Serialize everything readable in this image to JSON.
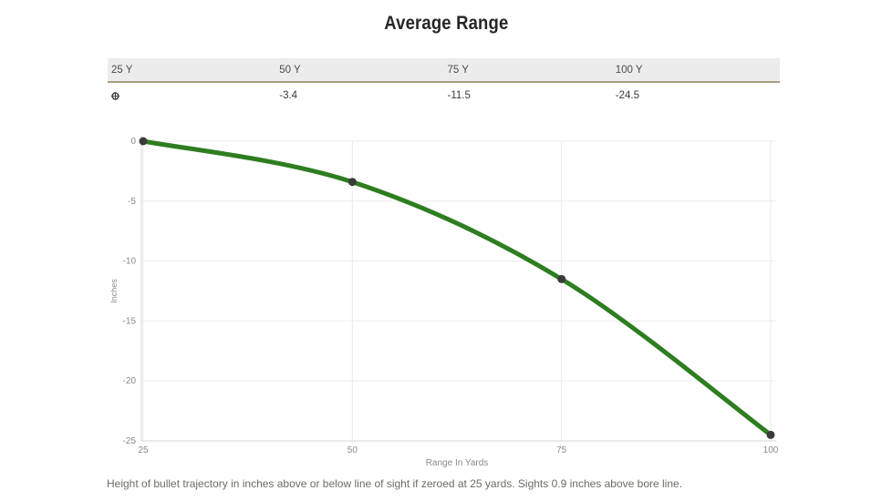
{
  "title": "Average Range",
  "table": {
    "headers": [
      "25 Y",
      "50 Y",
      "75 Y",
      "100 Y"
    ],
    "zero_icon": "scope-reticle-icon",
    "values": [
      "-3.4",
      "-11.5",
      "-24.5"
    ]
  },
  "chart_data": {
    "type": "line",
    "x": [
      25,
      50,
      75,
      100
    ],
    "series": [
      {
        "name": "Bullet trajectory height",
        "values": [
          0,
          -3.4,
          -11.5,
          -24.5
        ]
      }
    ],
    "xlabel": "Range In Yards",
    "ylabel": "Inches",
    "xticks": [
      25,
      50,
      75,
      100
    ],
    "yticks": [
      0,
      -5,
      -10,
      -15,
      -20,
      -25
    ],
    "xlim": [
      25,
      100
    ],
    "ylim": [
      -25,
      0
    ],
    "grid": true,
    "legend": "none",
    "line_color": "#2e7d20",
    "marker_color": "#3b3b3b"
  },
  "caption": "Height of bullet trajectory in inches above or below line of sight if zeroed at 25 yards. Sights 0.9 inches above bore line.",
  "colors": {
    "accent_green": "#2e7d20",
    "table_header_bg": "#ececec",
    "table_header_border": "#a79e7c",
    "grid_line": "#ebebeb",
    "axis_line": "#d6d6d6",
    "tick_text": "#8a8a8a",
    "caption_text": "#6d6d63"
  }
}
